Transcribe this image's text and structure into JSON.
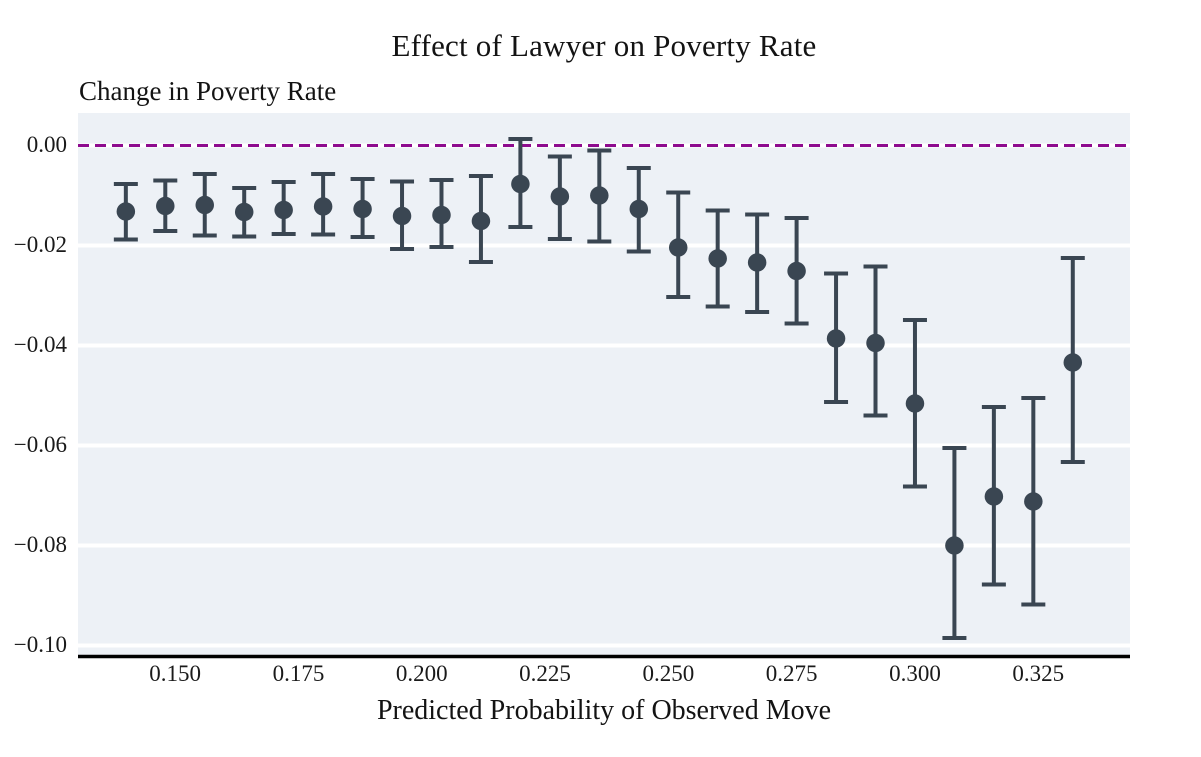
{
  "chart_data": {
    "type": "scatter",
    "title": "Effect of Lawyer on Poverty Rate",
    "ylabel": "Change in Poverty Rate",
    "xlabel": "Predicted Probability of Observed Move",
    "xlim": [
      0.1303,
      0.3436
    ],
    "ylim": [
      -0.1019,
      0.0065
    ],
    "grid": "horizontal-white-lines",
    "legend": "none",
    "zero_line": {
      "y": 0.0,
      "style": "dashed",
      "color": "#8e0b8e"
    },
    "x_ticks": [
      {
        "v": 0.15,
        "label": "0.150"
      },
      {
        "v": 0.175,
        "label": "0.175"
      },
      {
        "v": 0.2,
        "label": "0.200"
      },
      {
        "v": 0.225,
        "label": "0.225"
      },
      {
        "v": 0.25,
        "label": "0.250"
      },
      {
        "v": 0.275,
        "label": "0.275"
      },
      {
        "v": 0.3,
        "label": "0.300"
      },
      {
        "v": 0.325,
        "label": "0.325"
      }
    ],
    "y_ticks": [
      {
        "v": 0.0,
        "label": "0.00"
      },
      {
        "v": -0.02,
        "label": "−0.02"
      },
      {
        "v": -0.04,
        "label": "−0.04"
      },
      {
        "v": -0.06,
        "label": "−0.06"
      },
      {
        "v": -0.08,
        "label": "−0.08"
      },
      {
        "v": -0.1,
        "label": "−0.10"
      }
    ],
    "series": [
      {
        "name": "estimated-effect-with-95ci",
        "marker": "circle-with-error-bars",
        "color": "#3a4652",
        "points": [
          {
            "x": 0.14,
            "y": -0.0132,
            "ci_low": -0.0188,
            "ci_high": -0.0077
          },
          {
            "x": 0.148,
            "y": -0.0121,
            "ci_low": -0.0171,
            "ci_high": -0.007
          },
          {
            "x": 0.156,
            "y": -0.0119,
            "ci_low": -0.018,
            "ci_high": -0.0057
          },
          {
            "x": 0.164,
            "y": -0.0133,
            "ci_low": -0.0182,
            "ci_high": -0.0085
          },
          {
            "x": 0.172,
            "y": -0.0129,
            "ci_low": -0.0177,
            "ci_high": -0.0073
          },
          {
            "x": 0.18,
            "y": -0.0122,
            "ci_low": -0.0178,
            "ci_high": -0.0057
          },
          {
            "x": 0.188,
            "y": -0.0127,
            "ci_low": -0.0183,
            "ci_high": -0.0067
          },
          {
            "x": 0.196,
            "y": -0.0141,
            "ci_low": -0.0207,
            "ci_high": -0.0072
          },
          {
            "x": 0.204,
            "y": -0.0139,
            "ci_low": -0.0203,
            "ci_high": -0.0069
          },
          {
            "x": 0.212,
            "y": -0.0151,
            "ci_low": -0.0233,
            "ci_high": -0.0061
          },
          {
            "x": 0.22,
            "y": -0.0077,
            "ci_low": -0.0163,
            "ci_high": 0.0013
          },
          {
            "x": 0.228,
            "y": -0.0102,
            "ci_low": -0.0187,
            "ci_high": -0.0022
          },
          {
            "x": 0.236,
            "y": -0.01,
            "ci_low": -0.0192,
            "ci_high": -0.001
          },
          {
            "x": 0.244,
            "y": -0.0127,
            "ci_low": -0.0212,
            "ci_high": -0.0045
          },
          {
            "x": 0.252,
            "y": -0.0204,
            "ci_low": -0.0303,
            "ci_high": -0.0094
          },
          {
            "x": 0.26,
            "y": -0.0226,
            "ci_low": -0.0322,
            "ci_high": -0.013
          },
          {
            "x": 0.268,
            "y": -0.0234,
            "ci_low": -0.0333,
            "ci_high": -0.0138
          },
          {
            "x": 0.276,
            "y": -0.0251,
            "ci_low": -0.0356,
            "ci_high": -0.0145
          },
          {
            "x": 0.284,
            "y": -0.0386,
            "ci_low": -0.0513,
            "ci_high": -0.0256
          },
          {
            "x": 0.292,
            "y": -0.0395,
            "ci_low": -0.054,
            "ci_high": -0.0242
          },
          {
            "x": 0.3,
            "y": -0.0516,
            "ci_low": -0.0682,
            "ci_high": -0.0349
          },
          {
            "x": 0.308,
            "y": -0.08,
            "ci_low": -0.0985,
            "ci_high": -0.0605
          },
          {
            "x": 0.316,
            "y": -0.0702,
            "ci_low": -0.0878,
            "ci_high": -0.0523
          },
          {
            "x": 0.324,
            "y": -0.0712,
            "ci_low": -0.0918,
            "ci_high": -0.0505
          },
          {
            "x": 0.332,
            "y": -0.0434,
            "ci_low": -0.0633,
            "ci_high": -0.0225
          }
        ]
      }
    ],
    "colors": {
      "plot_background": "#edf1f6",
      "gridline": "#ffffff",
      "marker": "#3a4652",
      "zero_line": "#8e0b8e",
      "axis_spine": "#000000",
      "text": "#131313"
    }
  }
}
